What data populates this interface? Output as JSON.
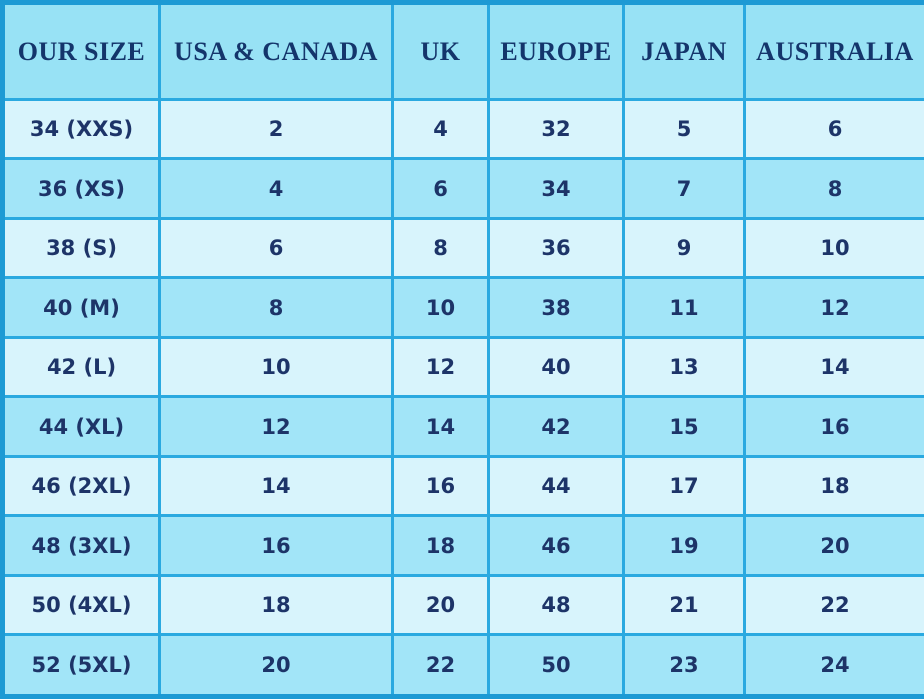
{
  "chart_data": {
    "type": "table",
    "columns": [
      "OUR SIZE",
      "USA & CANADA",
      "UK",
      "EUROPE",
      "JAPAN",
      "AUSTRALIA"
    ],
    "rows": [
      [
        "34 (XXS)",
        "2",
        "4",
        "32",
        "5",
        "6"
      ],
      [
        "36 (XS)",
        "4",
        "6",
        "34",
        "7",
        "8"
      ],
      [
        "38 (S)",
        "6",
        "8",
        "36",
        "9",
        "10"
      ],
      [
        "40 (M)",
        "8",
        "10",
        "38",
        "11",
        "12"
      ],
      [
        "42 (L)",
        "10",
        "12",
        "40",
        "13",
        "14"
      ],
      [
        "44 (XL)",
        "12",
        "14",
        "42",
        "15",
        "16"
      ],
      [
        "46 (2XL)",
        "14",
        "16",
        "44",
        "17",
        "18"
      ],
      [
        "48 (3XL)",
        "16",
        "18",
        "46",
        "19",
        "20"
      ],
      [
        "50 (4XL)",
        "18",
        "20",
        "48",
        "21",
        "22"
      ],
      [
        "52 (5XL)",
        "20",
        "22",
        "50",
        "23",
        "24"
      ]
    ]
  },
  "colors": {
    "header_bg": "#98E2F5",
    "row_odd_bg": "#D8F4FC",
    "row_even_bg": "#A2E5F8",
    "grid_border": "#2AA9E0",
    "outer_border": "#1D9AD4",
    "header_text": "#14356B",
    "cell_text": "#1D3468"
  }
}
